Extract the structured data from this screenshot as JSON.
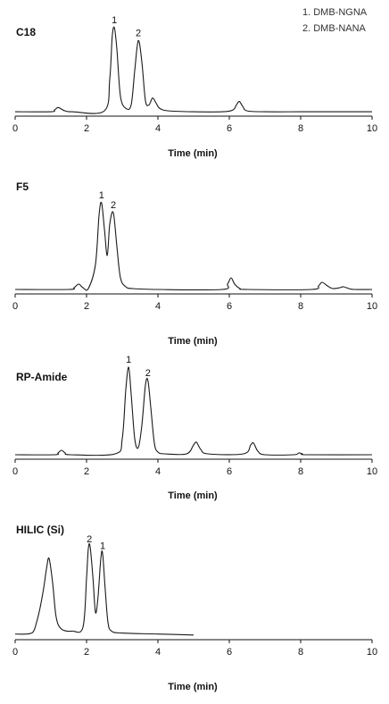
{
  "legend": [
    "1. DMB-NGNA",
    "2. DMB-NANA"
  ],
  "chart_data": [
    {
      "type": "line",
      "title": "C18",
      "xlabel": "Time (min)",
      "xlim": [
        0,
        10
      ],
      "xticks": [
        "0",
        "2",
        "4",
        "6",
        "8",
        "10"
      ],
      "ylim": [
        0,
        100
      ],
      "series": [
        {
          "x": [
            0,
            1.0,
            1.1,
            1.2,
            1.3,
            1.4,
            1.6,
            2.5,
            2.65,
            2.72,
            2.78,
            2.85,
            2.95,
            3.1,
            3.25,
            3.35,
            3.45,
            3.55,
            3.65,
            3.75,
            3.85,
            3.95,
            4.05,
            4.3,
            5.0,
            5.8,
            6.1,
            6.2,
            6.28,
            6.38,
            6.5,
            7.0,
            8.0,
            9.0,
            10.0
          ],
          "y": [
            2,
            2,
            4,
            7,
            5,
            3,
            2,
            3,
            40,
            90,
            100,
            75,
            20,
            6,
            10,
            50,
            85,
            60,
            15,
            10,
            18,
            12,
            6,
            3,
            2,
            2,
            4,
            10,
            14,
            8,
            3,
            2,
            2,
            2,
            2
          ]
        }
      ],
      "peaks": [
        {
          "label": "1",
          "x": 2.78,
          "y": 100
        },
        {
          "label": "2",
          "x": 3.45,
          "y": 85
        }
      ]
    },
    {
      "type": "line",
      "title": "F5",
      "xlabel": "Time (min)",
      "xlim": [
        0,
        10
      ],
      "xticks": [
        "0",
        "2",
        "4",
        "6",
        "8",
        "10"
      ],
      "ylim": [
        0,
        100
      ],
      "series": [
        {
          "x": [
            0,
            1.5,
            1.65,
            1.78,
            1.9,
            2.05,
            2.25,
            2.35,
            2.42,
            2.5,
            2.58,
            2.65,
            2.75,
            2.85,
            2.95,
            3.1,
            3.3,
            4.0,
            5.8,
            5.95,
            6.05,
            6.15,
            6.3,
            6.5,
            8.3,
            8.5,
            8.6,
            8.75,
            8.9,
            9.1,
            9.2,
            9.35,
            9.5,
            10.0
          ],
          "y": [
            2,
            2,
            4,
            8,
            4,
            3,
            30,
            85,
            99,
            70,
            40,
            75,
            88,
            50,
            15,
            5,
            3,
            2,
            2,
            8,
            15,
            8,
            3,
            2,
            2,
            6,
            10,
            6,
            3,
            4,
            5,
            3,
            2,
            2
          ]
        }
      ],
      "peaks": [
        {
          "label": "1",
          "x": 2.42,
          "y": 99
        },
        {
          "label": "2",
          "x": 2.75,
          "y": 88
        }
      ]
    },
    {
      "type": "line",
      "title": "RP-Amide",
      "xlabel": "Time (min)",
      "xlim": [
        0,
        10
      ],
      "xticks": [
        "0",
        "2",
        "4",
        "6",
        "8",
        "10"
      ],
      "ylim": [
        0,
        100
      ],
      "series": [
        {
          "x": [
            0,
            1.1,
            1.2,
            1.3,
            1.4,
            1.55,
            2.8,
            3.0,
            3.1,
            3.18,
            3.25,
            3.35,
            3.45,
            3.55,
            3.65,
            3.72,
            3.8,
            3.9,
            4.0,
            4.2,
            4.8,
            5.0,
            5.08,
            5.2,
            5.4,
            6.4,
            6.6,
            6.68,
            6.8,
            7.0,
            7.8,
            7.95,
            8.05,
            8.2,
            10.0
          ],
          "y": [
            2,
            2,
            4,
            7,
            4,
            2,
            3,
            20,
            75,
            100,
            70,
            20,
            10,
            35,
            80,
            85,
            55,
            15,
            5,
            3,
            3,
            13,
            16,
            8,
            3,
            3,
            13,
            15,
            6,
            2,
            2,
            4,
            3,
            2,
            2
          ]
        }
      ],
      "peaks": [
        {
          "label": "1",
          "x": 3.18,
          "y": 100
        },
        {
          "label": "2",
          "x": 3.72,
          "y": 85
        }
      ]
    },
    {
      "type": "line",
      "title": "HILIC (Si)",
      "xlabel": "Time (min)",
      "xlim": [
        0,
        10
      ],
      "xticks": [
        "0",
        "2",
        "4",
        "6",
        "8",
        "10"
      ],
      "ylim": [
        0,
        100
      ],
      "series": [
        {
          "x": [
            0,
            0.3,
            0.5,
            0.6,
            0.7,
            0.8,
            0.88,
            0.95,
            1.05,
            1.15,
            1.3,
            1.6,
            1.9,
            2.0,
            2.05,
            2.1,
            2.18,
            2.25,
            2.32,
            2.4,
            2.45,
            2.52,
            2.6,
            2.7,
            3.0,
            4.0,
            5.0
          ],
          "y": [
            3,
            3,
            5,
            15,
            30,
            50,
            70,
            80,
            55,
            20,
            8,
            6,
            10,
            60,
            90,
            92,
            60,
            25,
            40,
            80,
            85,
            50,
            15,
            6,
            4,
            3,
            2
          ]
        }
      ],
      "peaks": [
        {
          "label": "2",
          "x": 2.08,
          "y": 92
        },
        {
          "label": "1",
          "x": 2.45,
          "y": 85
        }
      ]
    }
  ]
}
